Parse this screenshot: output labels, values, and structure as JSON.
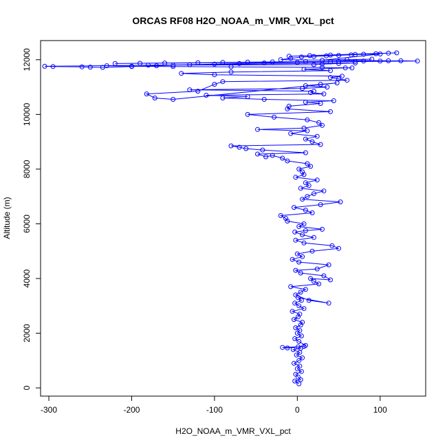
{
  "chart_data": {
    "type": "scatter",
    "title": "ORCAS RF08 H2O_NOAA_m_VMR_VXL_pct",
    "xlabel": "H2O_NOAA_m_VMR_VXL_pct",
    "ylabel": "Altitude (m)",
    "xlim": [
      -310,
      155
    ],
    "ylim": [
      -300,
      12700
    ],
    "x_ticks": [
      -300,
      -200,
      -100,
      0,
      100
    ],
    "y_ticks": [
      0,
      2000,
      4000,
      6000,
      8000,
      10000,
      12000
    ],
    "grid": false,
    "legend": "none",
    "marker": "open-circle",
    "connected": true,
    "series": [
      {
        "color": "#0000ff",
        "x": [
          2,
          -3,
          4,
          1,
          -2,
          5,
          0,
          3,
          -4,
          2,
          6,
          -1,
          3,
          -5,
          4,
          1,
          -18,
          -12,
          8,
          10,
          2,
          -3,
          5,
          0,
          3,
          -2,
          4,
          6,
          -4,
          1,
          3,
          -6,
          8,
          2,
          -3,
          5,
          1,
          38,
          14,
          -2,
          4,
          10,
          -8,
          26,
          20,
          16,
          40,
          32,
          4,
          -2,
          24,
          38,
          2,
          -6,
          6,
          0,
          18,
          50,
          42,
          8,
          -2,
          20,
          6,
          -3,
          10,
          30,
          2,
          8,
          -12,
          -14,
          -20,
          18,
          10,
          -4,
          28,
          52,
          6,
          12,
          20,
          32,
          4,
          14,
          10,
          24,
          -2,
          8,
          6,
          2,
          16,
          12,
          -12,
          -18,
          -30,
          -38,
          -48,
          10,
          -42,
          -62,
          -70,
          -80,
          28,
          18,
          10,
          24,
          -8,
          12,
          -48,
          8,
          30,
          26,
          12,
          -28,
          -60,
          40,
          -12,
          -10,
          28,
          10,
          44,
          -40,
          -90,
          -60,
          -110,
          32,
          16,
          20,
          -130,
          6,
          36,
          10,
          28,
          48,
          -150,
          -172,
          -182,
          -120,
          -100,
          -90,
          60,
          50,
          40,
          54,
          -100,
          -140,
          -80,
          40,
          8,
          58,
          66,
          30,
          -80,
          -150,
          -200,
          -230,
          -180,
          20,
          30,
          50,
          70,
          -305,
          -295,
          -260,
          -250,
          -235,
          -200,
          -170,
          -150,
          -130,
          -100,
          -70,
          -40,
          0,
          40,
          70,
          100,
          125,
          145,
          -220,
          -190,
          -160,
          -120,
          -90,
          -60,
          -30,
          10,
          50,
          80,
          110,
          -20,
          -8,
          5,
          20,
          35,
          50,
          65,
          80,
          95,
          110,
          120,
          -10,
          15,
          40,
          70,
          100,
          30,
          60,
          90
        ],
        "y": [
          150,
          250,
          300,
          400,
          500,
          600,
          700,
          800,
          900,
          1000,
          1100,
          1200,
          1300,
          1400,
          1450,
          1500,
          1480,
          1460,
          1520,
          1550,
          1700,
          1800,
          1900,
          2000,
          2100,
          2200,
          2300,
          2400,
          2500,
          2600,
          2700,
          2800,
          2900,
          3000,
          3100,
          3200,
          3300,
          3100,
          3200,
          3400,
          3500,
          3600,
          3700,
          3800,
          3900,
          4000,
          3950,
          4100,
          4200,
          4300,
          4350,
          4500,
          4600,
          4700,
          4800,
          4900,
          5000,
          5100,
          5200,
          5300,
          5400,
          5500,
          5600,
          5700,
          5750,
          5800,
          5900,
          6000,
          6100,
          6200,
          6300,
          6400,
          6500,
          6600,
          6700,
          6800,
          6900,
          7000,
          7100,
          7200,
          7300,
          7400,
          7500,
          7600,
          7700,
          7800,
          7900,
          8000,
          8100,
          8200,
          8300,
          8400,
          8500,
          8450,
          8550,
          8600,
          8700,
          8750,
          8800,
          8850,
          8900,
          9000,
          9100,
          9200,
          9300,
          9400,
          9450,
          9500,
          9600,
          9700,
          9800,
          9900,
          10000,
          10100,
          10200,
          10300,
          10400,
          10450,
          10500,
          10550,
          10600,
          10650,
          10700,
          10750,
          10800,
          10850,
          10900,
          10950,
          11000,
          11050,
          11100,
          11150,
          10550,
          10600,
          10750,
          10850,
          11100,
          11200,
          11250,
          11300,
          11350,
          11400,
          11450,
          11500,
          11550,
          11600,
          11650,
          11700,
          11700,
          11720,
          11740,
          11750,
          11760,
          11780,
          11800,
          11820,
          11840,
          11860,
          11880,
          11760,
          11750,
          11740,
          11730,
          11720,
          11750,
          11780,
          11800,
          11820,
          11840,
          11860,
          11880,
          11900,
          11920,
          11940,
          11950,
          11960,
          11950,
          11860,
          11870,
          11880,
          11890,
          11900,
          11910,
          11920,
          11930,
          11940,
          11950,
          11960,
          12000,
          12050,
          12100,
          12120,
          12140,
          12160,
          12180,
          12200,
          12220,
          12240,
          12250,
          12130,
          12150,
          12170,
          12190,
          12210,
          11980,
          12000,
          12020
        ]
      }
    ]
  }
}
